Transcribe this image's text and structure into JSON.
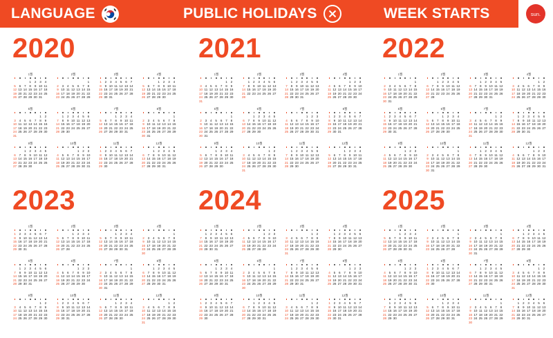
{
  "topbar": {
    "language_label": "LANGUAGE",
    "holidays_label": "PUBLIC HOLIDAYS",
    "week_starts_label": "WEEK STARTS",
    "week_start_value": "sun.",
    "flag": "south-korea-flag",
    "holidays_icon": "x-circle-icon",
    "accent_color": "#ef4a23"
  },
  "years": [
    {
      "year": "2020"
    },
    {
      "year": "2021"
    },
    {
      "year": "2022"
    },
    {
      "year": "2023"
    },
    {
      "year": "2024"
    },
    {
      "year": "2025"
    }
  ],
  "month_names": [
    "1월",
    "2월",
    "3월",
    "4월",
    "5월",
    "6월",
    "7월",
    "8월",
    "9월",
    "10월",
    "11월",
    "12월"
  ],
  "week_start": "sunday",
  "sunday_color": "#ef4a23"
}
